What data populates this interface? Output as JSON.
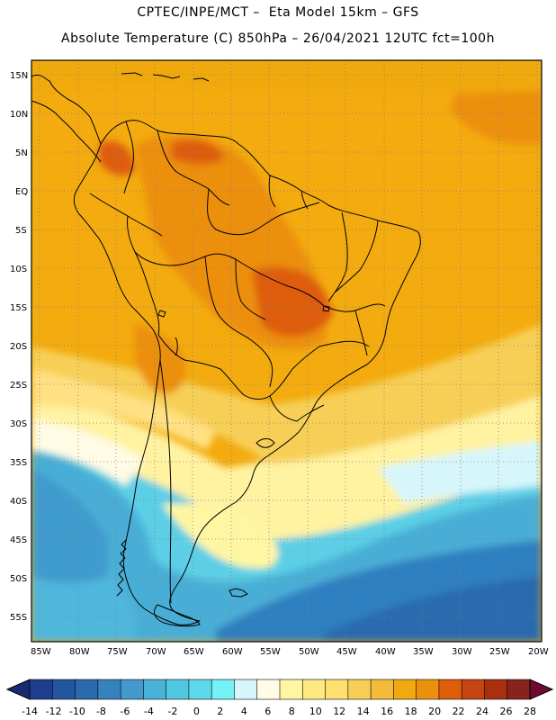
{
  "title_line1": "CPTEC/INPE/MCT –  Eta Model 15km – GFS",
  "title_line2": "Absolute Temperature (C) 850hPa – 26/04/2021 12UTC fct=100h",
  "lat_labels": [
    "15N",
    "10N",
    "5N",
    "EQ",
    "5S",
    "10S",
    "15S",
    "20S",
    "25S",
    "30S",
    "35S",
    "40S",
    "45S",
    "50S",
    "55S"
  ],
  "lon_labels": [
    "85W",
    "80W",
    "75W",
    "70W",
    "65W",
    "60W",
    "55W",
    "50W",
    "45W",
    "40W",
    "35W",
    "30W",
    "25W",
    "20W"
  ],
  "colorbar": {
    "ticks": [
      "-14",
      "-12",
      "-10",
      "-8",
      "-6",
      "-4",
      "-2",
      "0",
      "2",
      "4",
      "6",
      "8",
      "10",
      "12",
      "14",
      "16",
      "18",
      "20",
      "22",
      "24",
      "26",
      "28"
    ],
    "colors": [
      "#1d3e8c",
      "#2456a0",
      "#2c6aae",
      "#3682be",
      "#4499cc",
      "#49b2d8",
      "#52c7e2",
      "#5ed9ec",
      "#74f2f6",
      "#d6f6fc",
      "#fffbe4",
      "#fff6a3",
      "#ffea82",
      "#fde070",
      "#f7cf56",
      "#f2bb3a",
      "#f0a90f",
      "#ec8f0c",
      "#de5d0a",
      "#c44512",
      "#a8300f",
      "#87221c"
    ],
    "under_color": "#1a2a70",
    "over_color": "#700a30"
  },
  "colors": {
    "ocean_cold": "#2f7fbf",
    "ocean_cool": "#4aaed6",
    "warm_bg": "#f3ab0f"
  }
}
